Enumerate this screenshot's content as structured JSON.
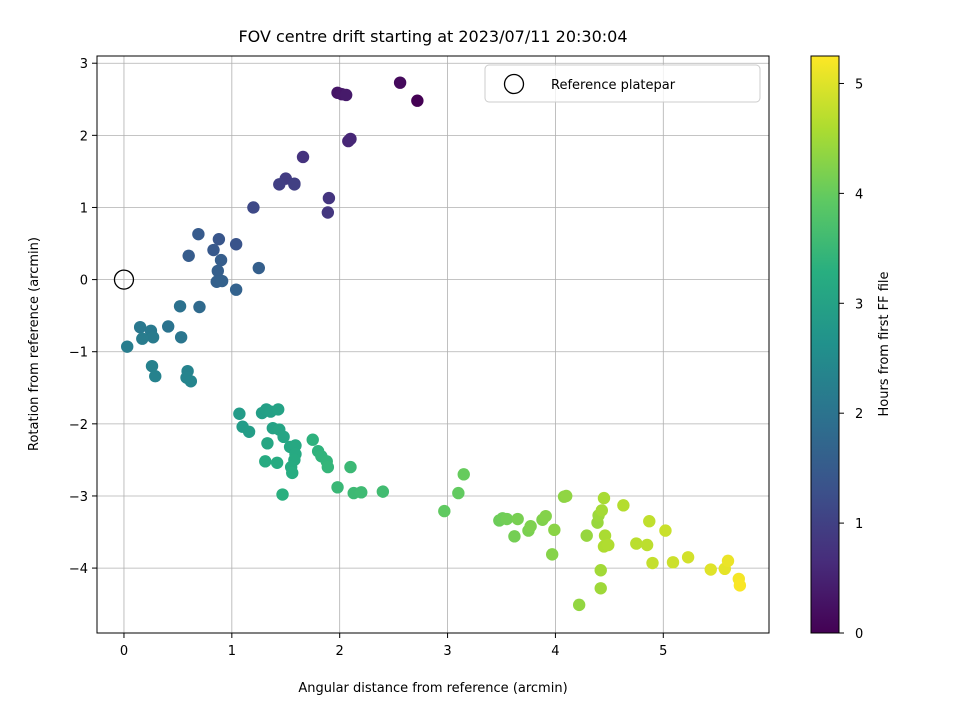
{
  "chart_data": {
    "type": "scatter",
    "title": "FOV centre drift starting at 2023/07/11 20:30:04",
    "xlabel": "Angular distance from reference (arcmin)",
    "ylabel": "Rotation from reference (arcmin)",
    "xlim": [
      -0.25,
      5.98
    ],
    "ylim": [
      -4.9,
      3.1
    ],
    "xticks": [
      0,
      1,
      2,
      3,
      4,
      5
    ],
    "yticks": [
      -4,
      -3,
      -2,
      -1,
      0,
      1,
      2,
      3
    ],
    "grid": true,
    "legend": {
      "placement": "top-right",
      "entries": [
        "Reference platepar"
      ]
    },
    "reference_point": {
      "label": "Reference platepar",
      "x": 0,
      "y": 0,
      "marker": "open-circle"
    },
    "colorbar": {
      "label": "Hours from first FF file",
      "colormap": "viridis",
      "range": [
        0,
        5.25
      ],
      "ticks": [
        0,
        1,
        2,
        3,
        4,
        5
      ]
    },
    "points": [
      {
        "x": 2.72,
        "y": 2.48,
        "c": 0.0
      },
      {
        "x": 2.56,
        "y": 2.73,
        "c": 0.13
      },
      {
        "x": 1.98,
        "y": 2.59,
        "c": 0.3
      },
      {
        "x": 2.02,
        "y": 2.57,
        "c": 0.33
      },
      {
        "x": 2.06,
        "y": 2.56,
        "c": 0.37
      },
      {
        "x": 2.08,
        "y": 1.92,
        "c": 0.55
      },
      {
        "x": 2.1,
        "y": 1.95,
        "c": 0.57
      },
      {
        "x": 1.66,
        "y": 1.7,
        "c": 0.77
      },
      {
        "x": 1.9,
        "y": 1.13,
        "c": 0.8
      },
      {
        "x": 1.89,
        "y": 0.93,
        "c": 0.83
      },
      {
        "x": 1.58,
        "y": 1.33,
        "c": 0.9
      },
      {
        "x": 1.5,
        "y": 1.4,
        "c": 0.93
      },
      {
        "x": 1.44,
        "y": 1.32,
        "c": 0.97
      },
      {
        "x": 1.58,
        "y": 1.32,
        "c": 1.0
      },
      {
        "x": 1.2,
        "y": 1.0,
        "c": 1.15
      },
      {
        "x": 1.04,
        "y": 0.49,
        "c": 1.35
      },
      {
        "x": 0.88,
        "y": 0.56,
        "c": 1.4
      },
      {
        "x": 0.83,
        "y": 0.41,
        "c": 1.45
      },
      {
        "x": 0.69,
        "y": 0.63,
        "c": 1.5
      },
      {
        "x": 0.6,
        "y": 0.33,
        "c": 1.52
      },
      {
        "x": 0.9,
        "y": 0.27,
        "c": 1.55
      },
      {
        "x": 0.87,
        "y": 0.12,
        "c": 1.57
      },
      {
        "x": 0.86,
        "y": -0.03,
        "c": 1.6
      },
      {
        "x": 0.91,
        "y": -0.02,
        "c": 1.62
      },
      {
        "x": 1.04,
        "y": -0.14,
        "c": 1.65
      },
      {
        "x": 1.25,
        "y": 0.16,
        "c": 1.58
      },
      {
        "x": 0.7,
        "y": -0.38,
        "c": 1.8
      },
      {
        "x": 0.52,
        "y": -0.37,
        "c": 1.95
      },
      {
        "x": 0.41,
        "y": -0.65,
        "c": 2.0
      },
      {
        "x": 0.53,
        "y": -0.8,
        "c": 2.05
      },
      {
        "x": 0.15,
        "y": -0.66,
        "c": 2.1
      },
      {
        "x": 0.25,
        "y": -0.71,
        "c": 2.12
      },
      {
        "x": 0.27,
        "y": -0.8,
        "c": 2.15
      },
      {
        "x": 0.17,
        "y": -0.82,
        "c": 2.17
      },
      {
        "x": 0.03,
        "y": -0.93,
        "c": 2.2
      },
      {
        "x": 0.26,
        "y": -1.2,
        "c": 2.28
      },
      {
        "x": 0.29,
        "y": -1.34,
        "c": 2.3
      },
      {
        "x": 0.59,
        "y": -1.27,
        "c": 2.32
      },
      {
        "x": 0.58,
        "y": -1.36,
        "c": 2.35
      },
      {
        "x": 0.62,
        "y": -1.41,
        "c": 2.38
      },
      {
        "x": 1.07,
        "y": -1.86,
        "c": 2.85
      },
      {
        "x": 1.1,
        "y": -2.04,
        "c": 2.87
      },
      {
        "x": 1.16,
        "y": -2.11,
        "c": 2.9
      },
      {
        "x": 1.28,
        "y": -1.85,
        "c": 2.92
      },
      {
        "x": 1.32,
        "y": -1.8,
        "c": 2.95
      },
      {
        "x": 1.36,
        "y": -1.83,
        "c": 2.97
      },
      {
        "x": 1.43,
        "y": -1.8,
        "c": 3.0
      },
      {
        "x": 1.38,
        "y": -2.06,
        "c": 3.02
      },
      {
        "x": 1.44,
        "y": -2.08,
        "c": 3.05
      },
      {
        "x": 1.48,
        "y": -2.18,
        "c": 3.07
      },
      {
        "x": 1.33,
        "y": -2.27,
        "c": 3.1
      },
      {
        "x": 1.54,
        "y": -2.32,
        "c": 3.12
      },
      {
        "x": 1.59,
        "y": -2.3,
        "c": 3.15
      },
      {
        "x": 1.59,
        "y": -2.42,
        "c": 3.17
      },
      {
        "x": 1.58,
        "y": -2.5,
        "c": 3.2
      },
      {
        "x": 1.55,
        "y": -2.6,
        "c": 3.22
      },
      {
        "x": 1.56,
        "y": -2.68,
        "c": 3.25
      },
      {
        "x": 1.31,
        "y": -2.52,
        "c": 3.2
      },
      {
        "x": 1.42,
        "y": -2.54,
        "c": 3.22
      },
      {
        "x": 1.47,
        "y": -2.98,
        "c": 3.3
      },
      {
        "x": 1.75,
        "y": -2.22,
        "c": 3.35
      },
      {
        "x": 1.8,
        "y": -2.38,
        "c": 3.37
      },
      {
        "x": 1.83,
        "y": -2.45,
        "c": 3.4
      },
      {
        "x": 1.88,
        "y": -2.52,
        "c": 3.42
      },
      {
        "x": 1.89,
        "y": -2.6,
        "c": 3.44
      },
      {
        "x": 1.98,
        "y": -2.88,
        "c": 3.5
      },
      {
        "x": 2.1,
        "y": -2.6,
        "c": 3.52
      },
      {
        "x": 2.13,
        "y": -2.96,
        "c": 3.55
      },
      {
        "x": 2.2,
        "y": -2.95,
        "c": 3.57
      },
      {
        "x": 2.4,
        "y": -2.94,
        "c": 3.6
      },
      {
        "x": 2.97,
        "y": -3.21,
        "c": 3.95
      },
      {
        "x": 3.1,
        "y": -2.96,
        "c": 3.97
      },
      {
        "x": 3.15,
        "y": -2.7,
        "c": 4.0
      },
      {
        "x": 3.48,
        "y": -3.34,
        "c": 4.05
      },
      {
        "x": 3.51,
        "y": -3.31,
        "c": 4.07
      },
      {
        "x": 3.55,
        "y": -3.32,
        "c": 4.1
      },
      {
        "x": 3.62,
        "y": -3.56,
        "c": 4.12
      },
      {
        "x": 3.65,
        "y": -3.32,
        "c": 4.15
      },
      {
        "x": 3.75,
        "y": -3.48,
        "c": 4.17
      },
      {
        "x": 3.77,
        "y": -3.42,
        "c": 4.2
      },
      {
        "x": 3.88,
        "y": -3.33,
        "c": 4.22
      },
      {
        "x": 3.91,
        "y": -3.28,
        "c": 4.25
      },
      {
        "x": 3.97,
        "y": -3.81,
        "c": 4.27
      },
      {
        "x": 3.99,
        "y": -3.47,
        "c": 4.3
      },
      {
        "x": 4.08,
        "y": -3.01,
        "c": 4.32
      },
      {
        "x": 4.1,
        "y": -3.0,
        "c": 4.35
      },
      {
        "x": 4.22,
        "y": -4.51,
        "c": 4.37
      },
      {
        "x": 4.29,
        "y": -3.55,
        "c": 4.4
      },
      {
        "x": 4.39,
        "y": -3.37,
        "c": 4.42
      },
      {
        "x": 4.4,
        "y": -3.27,
        "c": 4.45
      },
      {
        "x": 4.42,
        "y": -4.28,
        "c": 4.47
      },
      {
        "x": 4.42,
        "y": -4.03,
        "c": 4.5
      },
      {
        "x": 4.43,
        "y": -3.2,
        "c": 4.52
      },
      {
        "x": 4.45,
        "y": -3.03,
        "c": 4.55
      },
      {
        "x": 4.46,
        "y": -3.55,
        "c": 4.57
      },
      {
        "x": 4.45,
        "y": -3.7,
        "c": 4.6
      },
      {
        "x": 4.49,
        "y": -3.68,
        "c": 4.62
      },
      {
        "x": 4.63,
        "y": -3.13,
        "c": 4.65
      },
      {
        "x": 4.75,
        "y": -3.66,
        "c": 4.7
      },
      {
        "x": 4.85,
        "y": -3.68,
        "c": 4.72
      },
      {
        "x": 4.87,
        "y": -3.35,
        "c": 4.75
      },
      {
        "x": 4.9,
        "y": -3.93,
        "c": 4.78
      },
      {
        "x": 5.02,
        "y": -3.48,
        "c": 4.82
      },
      {
        "x": 5.09,
        "y": -3.92,
        "c": 4.85
      },
      {
        "x": 5.23,
        "y": -3.85,
        "c": 4.9
      },
      {
        "x": 5.44,
        "y": -4.02,
        "c": 5.0
      },
      {
        "x": 5.57,
        "y": -4.01,
        "c": 5.05
      },
      {
        "x": 5.6,
        "y": -3.9,
        "c": 5.1
      },
      {
        "x": 5.7,
        "y": -4.15,
        "c": 5.18
      },
      {
        "x": 5.71,
        "y": -4.24,
        "c": 5.22
      }
    ]
  }
}
